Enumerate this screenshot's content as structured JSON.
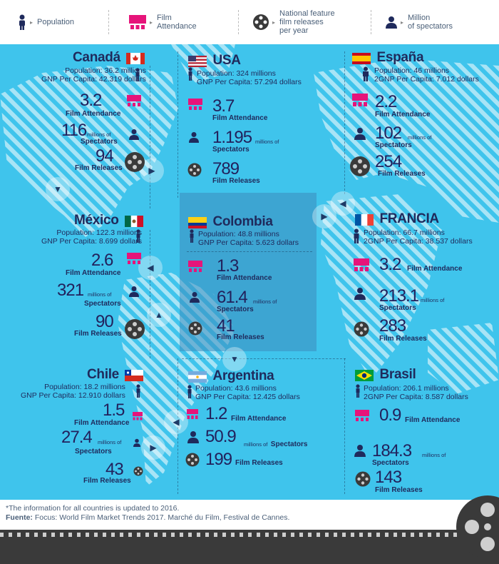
{
  "legend": {
    "population": "Population",
    "attendance_1": "Film",
    "attendance_2": "Attendance",
    "releases_1": "National feature",
    "releases_2": "film releases",
    "releases_3": "per year",
    "spectators_1": "Million",
    "spectators_2": "of spectators"
  },
  "countries": {
    "canada": {
      "name": "Canadá",
      "pop": "Population: 36.2 millions",
      "gnp": "GNP Per Capita: 42.319 dollars",
      "att": "3.2",
      "att_lbl": "Film Attendance",
      "spec": "116",
      "spec_unit": "millions of",
      "spec_lbl": "Spectators",
      "rel": "94",
      "rel_lbl": "Film Releases"
    },
    "usa": {
      "name": "USA",
      "pop": "Population: 324 millions",
      "gnp": "GNP Per Capita: 57.294 dollars",
      "att": "3.7",
      "att_lbl": "Film Attendance",
      "spec": "1.195",
      "spec_unit": "millions of",
      "spec_lbl": "Spectators",
      "rel": "789",
      "rel_lbl": "Film Releases"
    },
    "espana": {
      "name": "España",
      "pop": "Population: 46 millions",
      "gnp": "2GNP Per Capita: 7.012 dollars",
      "att": "2.2",
      "att_lbl": "Film Attendance",
      "spec": "102",
      "spec_unit": "millions of",
      "spec_lbl": "Spectators",
      "rel": "254",
      "rel_lbl": "Film Releases"
    },
    "mexico": {
      "name": "México",
      "pop": "Population: 122.3 millions",
      "gnp": "GNP Per Capita: 8.699 dollars",
      "att": "2.6",
      "att_lbl": "Film Attendance",
      "spec": "321",
      "spec_unit": "millions of",
      "spec_lbl": "Spectators",
      "rel": "90",
      "rel_lbl": "Film Releases"
    },
    "colombia": {
      "name": "Colombia",
      "pop": "Population: 48.8 millions",
      "gnp": "GNP Per Capita: 5.623 dollars",
      "att": "1.3",
      "att_lbl": "Film Attendance",
      "spec": "61.4",
      "spec_unit": "millions of",
      "spec_lbl": "Spectators",
      "rel": "41",
      "rel_lbl": "Film Releases"
    },
    "francia": {
      "name": "FRANCIA",
      "pop": "Population: 66.7 millions",
      "gnp": "2GNP Per Capita: 38.537 dollars",
      "att": "3.2",
      "att_lbl": "Film Attendance",
      "spec": "213.1",
      "spec_unit": "millions of",
      "spec_lbl": "Spectators",
      "rel": "283",
      "rel_lbl": "Film Releases"
    },
    "chile": {
      "name": "Chile",
      "pop": "Population: 18.2 millions",
      "gnp": "GNP Per Capita: 12.910 dollars",
      "att": "1.5",
      "att_lbl": "Film Attendance",
      "spec": "27.4",
      "spec_unit": "millions of",
      "spec_lbl": "Spectators",
      "rel": "43",
      "rel_lbl": "Film Releases"
    },
    "argentina": {
      "name": "Argentina",
      "pop": "Population: 43.6 millions",
      "gnp": "GNP Per Capita: 12.425 dollars",
      "att": "1.2",
      "att_lbl": "Film Attendance",
      "spec": "50.9",
      "spec_unit": "millions of",
      "spec_lbl": "Spectators",
      "rel": "199",
      "rel_lbl": "Film Releases"
    },
    "brasil": {
      "name": "Brasil",
      "pop": "Population: 206.1 millions",
      "gnp": "2GNP Per Capita: 8.587 dollars",
      "att": "0.9",
      "att_lbl": "Film Attendance",
      "spec": "184.3",
      "spec_unit": "millions of",
      "spec_lbl": "Spectators",
      "rel": "143",
      "rel_lbl": "Film Releases"
    }
  },
  "footer": {
    "note": "*The information for all countries is updated to 2016.",
    "source_label": "Fuente:",
    "source_text": " Focus: World Film Market Trends 2017. Marché du Film, Festival de Cannes."
  },
  "colors": {
    "ocean": "#3fc4ec",
    "pink": "#e6147a",
    "navy": "#1f2a5c",
    "film_dark": "#3a3a3a"
  }
}
